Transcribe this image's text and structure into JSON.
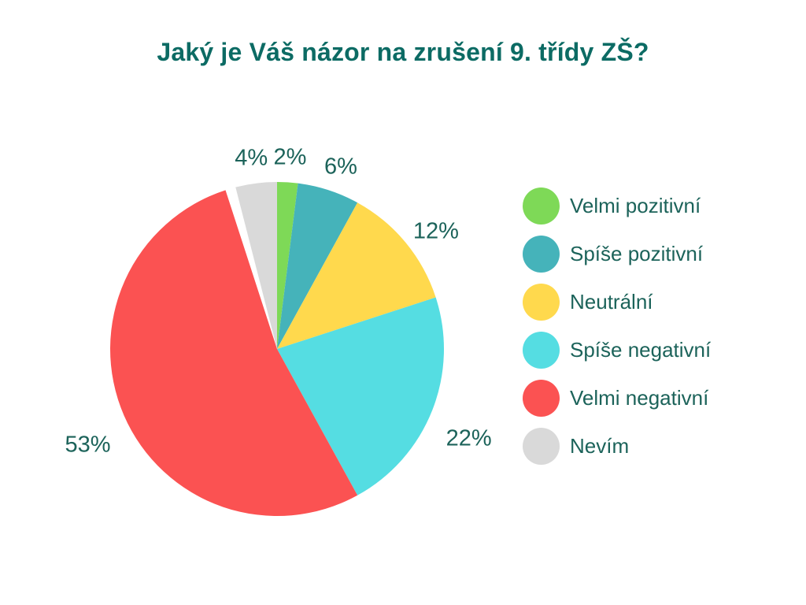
{
  "chart_data": {
    "type": "pie",
    "title": "Jaký je Váš názor na zrušení 9. třídy ZŠ?",
    "title_color": "#0C6B64",
    "label_color": "#1C635A",
    "background_color": "#FFFFFF",
    "legend_position": "right",
    "start_angle_deg": 0,
    "direction": "clockwise",
    "slices": [
      {
        "label": "Velmi pozitivní",
        "value_pct": 2,
        "value_label": "2%",
        "color": "#7ED957"
      },
      {
        "label": "Spíše pozitivní",
        "value_pct": 6,
        "value_label": "6%",
        "color": "#45B3BA"
      },
      {
        "label": "Neutrální",
        "value_pct": 12,
        "value_label": "12%",
        "color": "#FFD94D"
      },
      {
        "label": "Spíše negativní",
        "value_pct": 22,
        "value_label": "22%",
        "color": "#55DDE2"
      },
      {
        "label": "Velmi negativní",
        "value_pct": 53,
        "value_label": "53%",
        "color": "#FB5252"
      },
      {
        "label": "Nevím",
        "value_pct": 4,
        "value_label": "4%",
        "color": "#D9D9D9"
      }
    ]
  }
}
